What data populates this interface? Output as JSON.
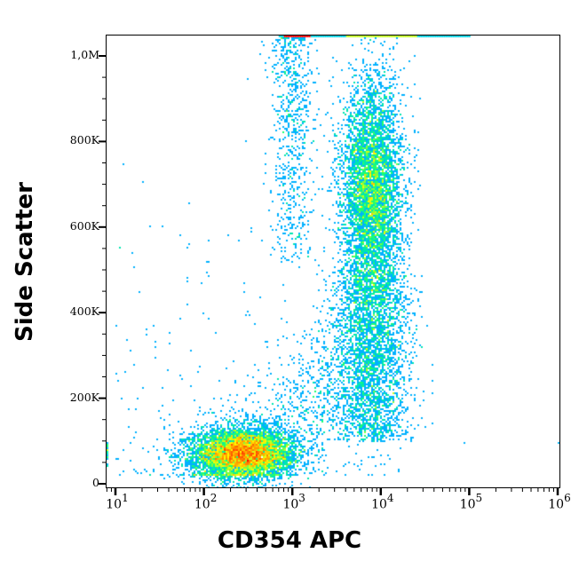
{
  "chart_data": {
    "type": "scatter",
    "subtype": "flow-cytometry-density-dot-plot",
    "title": "",
    "xlabel": "CD354 APC",
    "ylabel": "Side Scatter",
    "x_scale": "log",
    "y_scale": "linear",
    "xlim": [
      8,
      1100000
    ],
    "ylim": [
      -8000,
      1050000
    ],
    "x_ticks": [
      {
        "base": "10",
        "exp": "1",
        "value": 10
      },
      {
        "base": "10",
        "exp": "2",
        "value": 100
      },
      {
        "base": "10",
        "exp": "3",
        "value": 1000
      },
      {
        "base": "10",
        "exp": "4",
        "value": 10000
      },
      {
        "base": "10",
        "exp": "5",
        "value": 100000
      },
      {
        "base": "10",
        "exp": "6",
        "value": 1000000
      }
    ],
    "y_ticks": [
      {
        "label": "0",
        "value": 0
      },
      {
        "label": "200K",
        "value": 200000
      },
      {
        "label": "400K",
        "value": 400000
      },
      {
        "label": "600K",
        "value": 600000
      },
      {
        "label": "800K",
        "value": 800000
      },
      {
        "label": "1,0M",
        "value": 1000000
      }
    ],
    "grid": false,
    "legend": null,
    "color_scale": [
      "#0000ff",
      "#00bfff",
      "#00ff80",
      "#ffff00",
      "#ff8000",
      "#ff0000"
    ],
    "populations": [
      {
        "name": "CD354-negative low-SSC cluster",
        "center_x": 280,
        "center_y": 70000,
        "spread_log_x": 0.28,
        "spread_y": 28000,
        "peak_density": "high (red)",
        "events": 6500
      },
      {
        "name": "CD354-positive high-SSC cluster (granulocytes)",
        "center_x": 8000,
        "center_y": 680000,
        "spread_log_x": 0.17,
        "spread_y": 130000,
        "peak_density": "medium (green)",
        "events": 5500
      },
      {
        "name": "CD354-positive stalk",
        "center_x": 8000,
        "range_y": [
          100000,
          500000
        ],
        "spread_log_x": 0.22,
        "peak_density": "low (blue/cyan)",
        "events": 2600
      },
      {
        "name": "intermediate diagonal spread",
        "range_x": [
          100,
          8000
        ],
        "range_y": [
          50000,
          400000
        ],
        "peak_density": "low (blue)",
        "events": 1200
      },
      {
        "name": "low-CD354 high-SSC column",
        "center_x": 1000,
        "range_y": [
          500000,
          1050000
        ],
        "spread_log_x": 0.12,
        "peak_density": "low (blue)",
        "events": 700
      },
      {
        "name": "saturated top-edge events",
        "range_x": [
          700,
          100000
        ],
        "y": 1050000,
        "peak_density": "red near 10^3"
      }
    ],
    "outliers": [
      {
        "x": 90000,
        "y": 95000
      },
      {
        "x": 1000000,
        "y": 95000
      }
    ]
  }
}
